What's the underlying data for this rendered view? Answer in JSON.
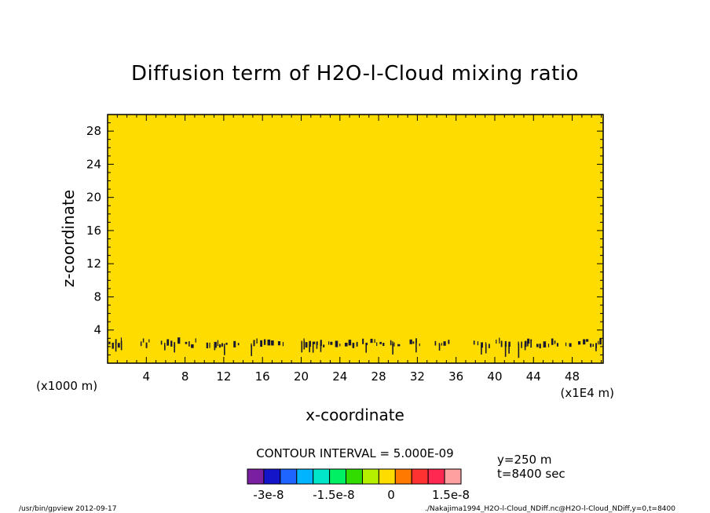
{
  "chart_data": {
    "type": "heatmap",
    "title": "Diffusion term of H2O-l-Cloud mixing ratio",
    "xlabel": "x-coordinate",
    "ylabel": "z-coordinate",
    "x_scale_label": "(x1E4 m)",
    "y_scale_label": "(x1000 m)",
    "xlim": [
      0,
      51.2
    ],
    "ylim": [
      0,
      30
    ],
    "x_ticks": [
      4,
      8,
      12,
      16,
      20,
      24,
      28,
      32,
      36,
      40,
      44,
      48
    ],
    "y_ticks": [
      4,
      8,
      12,
      16,
      20,
      24,
      28
    ],
    "background_value_band": "0 to 5.0e-9",
    "background_color": "#ffdc00",
    "contour_interval_label": "CONTOUR INTERVAL = 5.000E-09",
    "contour_line_color": "#1a1a2e",
    "contour_features": {
      "z_range": [
        0,
        3.5
      ],
      "x_clusters": [
        [
          0.1,
          1.4
        ],
        [
          3.4,
          4.4
        ],
        [
          5.5,
          7.5
        ],
        [
          8.0,
          9.3
        ],
        [
          10.2,
          10.6
        ],
        [
          11.0,
          12.3
        ],
        [
          13.0,
          13.6
        ],
        [
          14.8,
          17.3
        ],
        [
          17.6,
          18.3
        ],
        [
          20.0,
          20.7
        ],
        [
          20.8,
          22.4
        ],
        [
          22.8,
          24.1
        ],
        [
          24.5,
          25.9
        ],
        [
          26.3,
          28.7
        ],
        [
          29.2,
          30.2
        ],
        [
          31.2,
          32.2
        ],
        [
          33.8,
          35.5
        ],
        [
          37.8,
          39.6
        ],
        [
          40.1,
          41.6
        ],
        [
          42.4,
          43.9
        ],
        [
          44.3,
          46.7
        ],
        [
          47.3,
          47.9
        ],
        [
          48.6,
          51.0
        ]
      ]
    },
    "colorbar": {
      "colors": [
        "#7a1fa0",
        "#1414c8",
        "#1e64ff",
        "#00b4ff",
        "#00e6c8",
        "#00f064",
        "#32dc00",
        "#b4f000",
        "#ffdc00",
        "#ff7800",
        "#ff3232",
        "#ff2850",
        "#ffa0a0"
      ],
      "labels": [
        "-3e-8",
        "-1.5e-8",
        "0",
        "1.5e-8"
      ]
    },
    "annotations": {
      "y_position": "y=250 m",
      "time": "t=8400 sec"
    }
  },
  "footer": {
    "left": "/usr/bin/gpview  2012-09-17",
    "right": "./Nakajima1994_H2O-l-Cloud_NDiff.nc@H2O-l-Cloud_NDiff,y=0,t=8400"
  }
}
